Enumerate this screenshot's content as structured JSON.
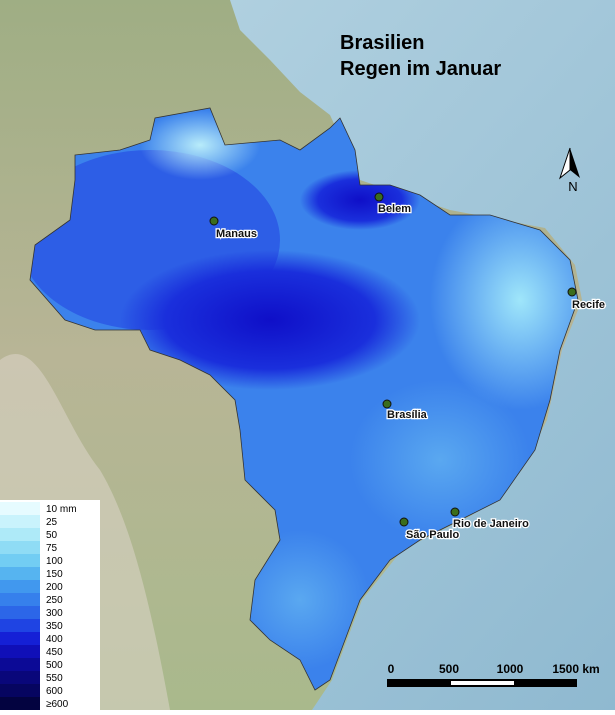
{
  "header": {
    "title": "Brasilien",
    "subtitle": "Regen im Januar"
  },
  "north": "N",
  "cities": [
    {
      "label": "Manaus"
    },
    {
      "label": "Belem"
    },
    {
      "label": "Recife"
    },
    {
      "label": "Brasília"
    },
    {
      "label": "Rio de Janeiro"
    },
    {
      "label": "São Paulo"
    }
  ],
  "legend": {
    "items": [
      {
        "label": "10 mm",
        "color": "#e6fbff"
      },
      {
        "label": "25",
        "color": "#c9f3fc"
      },
      {
        "label": "50",
        "color": "#aeeaf8"
      },
      {
        "label": "75",
        "color": "#8fdcf5"
      },
      {
        "label": "100",
        "color": "#72cdf3"
      },
      {
        "label": "150",
        "color": "#56b4f0"
      },
      {
        "label": "200",
        "color": "#4198ee"
      },
      {
        "label": "250",
        "color": "#3680ec"
      },
      {
        "label": "300",
        "color": "#2c66e8"
      },
      {
        "label": "350",
        "color": "#1f44e3"
      },
      {
        "label": "400",
        "color": "#1520d6"
      },
      {
        "label": "450",
        "color": "#100fb8"
      },
      {
        "label": "500",
        "color": "#0c0a96"
      },
      {
        "label": "550",
        "color": "#09077a"
      },
      {
        "label": "600",
        "color": "#060560"
      },
      {
        "label": "≥600",
        "color": "#030340"
      }
    ]
  },
  "scale": {
    "labels": [
      "0",
      "500",
      "1000",
      "1500 km"
    ]
  }
}
